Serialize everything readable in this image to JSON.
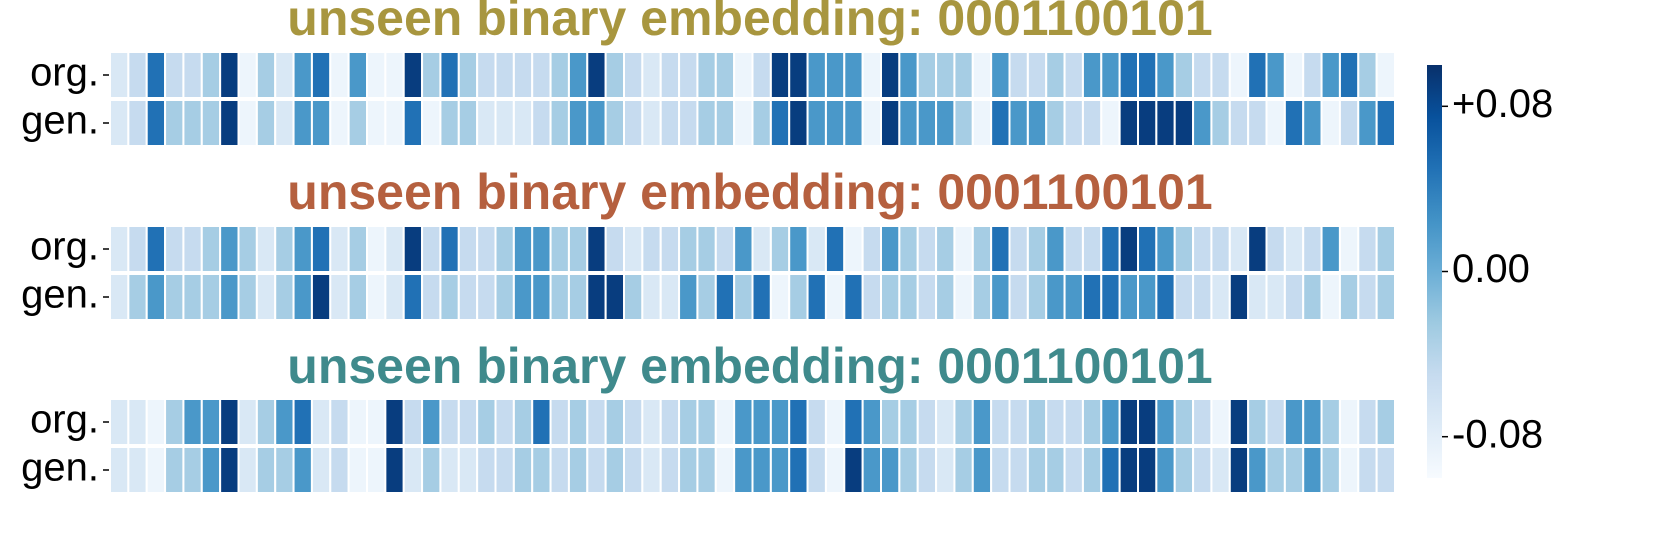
{
  "chart_data": [
    {
      "type": "heatmap",
      "title": "unseen binary embedding: 0001100101",
      "title_color": "#a8963f",
      "rows": [
        "org.",
        "gen."
      ],
      "values": [
        [
          -0.07,
          -0.05,
          0.05,
          -0.05,
          -0.05,
          -0.03,
          0.09,
          -0.09,
          -0.03,
          -0.07,
          0.02,
          0.05,
          -0.09,
          0.02,
          -0.09,
          -0.09,
          0.09,
          -0.03,
          0.05,
          -0.03,
          -0.05,
          -0.05,
          -0.05,
          -0.05,
          -0.03,
          0.02,
          0.09,
          -0.03,
          -0.05,
          -0.07,
          -0.05,
          -0.05,
          -0.03,
          -0.03,
          -0.09,
          -0.05,
          0.09,
          0.09,
          0.02,
          0.02,
          0.02,
          -0.09,
          0.09,
          0.02,
          -0.03,
          -0.03,
          -0.03,
          -0.09,
          0.02,
          -0.05,
          -0.05,
          -0.03,
          -0.05,
          0.02,
          0.02,
          0.05,
          0.05,
          0.02,
          -0.03,
          -0.05,
          -0.05,
          -0.09,
          0.05,
          0.02,
          -0.09,
          -0.05,
          0.02,
          0.05,
          -0.03,
          -0.09
        ],
        [
          -0.07,
          -0.05,
          0.05,
          -0.03,
          -0.03,
          -0.03,
          0.09,
          -0.09,
          -0.03,
          -0.07,
          0.02,
          0.02,
          -0.09,
          -0.03,
          -0.09,
          -0.09,
          0.05,
          -0.09,
          -0.03,
          -0.03,
          -0.07,
          -0.07,
          -0.07,
          -0.05,
          -0.03,
          0.02,
          0.02,
          -0.03,
          -0.05,
          -0.07,
          -0.05,
          -0.05,
          -0.03,
          -0.03,
          -0.09,
          -0.03,
          0.05,
          0.09,
          0.02,
          0.02,
          0.02,
          -0.09,
          0.09,
          0.02,
          0.02,
          0.02,
          -0.03,
          -0.09,
          0.05,
          0.02,
          0.02,
          -0.03,
          -0.05,
          -0.05,
          -0.09,
          0.09,
          0.09,
          0.09,
          0.09,
          0.02,
          -0.03,
          -0.05,
          -0.05,
          -0.09,
          0.05,
          0.02,
          -0.09,
          -0.05,
          0.02,
          0.05
        ]
      ]
    },
    {
      "type": "heatmap",
      "title": "unseen binary embedding: 0001100101",
      "title_color": "#b5603f",
      "rows": [
        "org.",
        "gen."
      ],
      "values": [
        [
          -0.07,
          -0.05,
          0.05,
          -0.05,
          -0.05,
          -0.03,
          0.02,
          -0.03,
          -0.07,
          -0.03,
          0.02,
          0.05,
          -0.07,
          -0.03,
          -0.09,
          -0.07,
          0.09,
          -0.05,
          0.05,
          -0.05,
          -0.05,
          -0.03,
          0.02,
          0.02,
          -0.03,
          -0.03,
          0.09,
          -0.05,
          -0.07,
          -0.05,
          -0.05,
          -0.03,
          -0.03,
          -0.05,
          0.02,
          -0.07,
          -0.03,
          0.02,
          -0.07,
          0.05,
          -0.09,
          -0.05,
          0.02,
          -0.03,
          -0.05,
          -0.03,
          -0.09,
          -0.03,
          0.05,
          -0.05,
          -0.03,
          0.02,
          -0.05,
          -0.05,
          0.05,
          0.09,
          0.05,
          0.02,
          -0.03,
          -0.05,
          -0.05,
          -0.07,
          0.09,
          -0.05,
          -0.07,
          -0.05,
          0.02,
          -0.09,
          -0.05,
          -0.03
        ],
        [
          -0.07,
          -0.03,
          0.02,
          -0.03,
          -0.03,
          -0.03,
          0.02,
          -0.03,
          -0.07,
          -0.03,
          0.02,
          0.09,
          -0.07,
          -0.03,
          -0.09,
          -0.07,
          0.05,
          -0.05,
          -0.03,
          -0.05,
          -0.05,
          -0.03,
          0.02,
          0.02,
          -0.03,
          -0.03,
          0.09,
          0.09,
          -0.03,
          -0.07,
          -0.07,
          0.02,
          -0.03,
          0.05,
          -0.03,
          0.05,
          -0.09,
          -0.03,
          0.05,
          -0.09,
          0.05,
          -0.05,
          -0.03,
          -0.03,
          -0.05,
          -0.03,
          -0.09,
          -0.03,
          0.02,
          -0.05,
          -0.03,
          0.02,
          0.02,
          0.05,
          0.05,
          0.02,
          0.02,
          0.05,
          -0.05,
          -0.05,
          -0.07,
          0.09,
          -0.07,
          -0.07,
          -0.05,
          -0.03,
          -0.09,
          -0.03,
          -0.05,
          -0.03
        ]
      ]
    },
    {
      "type": "heatmap",
      "title": "unseen binary embedding: 0001100101",
      "title_color": "#3f8a8c",
      "rows": [
        "org.",
        "gen."
      ],
      "values": [
        [
          -0.07,
          -0.07,
          -0.09,
          -0.03,
          0.02,
          0.02,
          0.09,
          -0.07,
          -0.03,
          0.02,
          0.05,
          -0.07,
          -0.05,
          -0.09,
          -0.09,
          0.09,
          -0.05,
          0.02,
          -0.05,
          -0.05,
          -0.03,
          -0.05,
          -0.03,
          0.05,
          -0.05,
          -0.03,
          -0.05,
          -0.03,
          -0.05,
          -0.07,
          -0.05,
          -0.03,
          -0.03,
          -0.09,
          0.02,
          0.02,
          0.02,
          0.05,
          -0.05,
          -0.09,
          0.05,
          0.02,
          -0.03,
          -0.03,
          -0.05,
          -0.07,
          -0.03,
          0.02,
          -0.05,
          -0.05,
          -0.03,
          -0.05,
          -0.05,
          -0.03,
          0.02,
          0.09,
          0.09,
          0.02,
          -0.03,
          -0.05,
          -0.09,
          0.09,
          -0.03,
          -0.05,
          0.02,
          0.02,
          -0.03,
          -0.09,
          -0.05,
          -0.03
        ],
        [
          -0.07,
          -0.07,
          -0.09,
          -0.03,
          -0.03,
          0.02,
          0.09,
          -0.07,
          -0.03,
          -0.03,
          0.02,
          -0.07,
          -0.05,
          -0.09,
          -0.09,
          0.09,
          -0.07,
          -0.03,
          -0.07,
          -0.07,
          -0.05,
          -0.05,
          -0.03,
          -0.03,
          -0.05,
          -0.03,
          -0.05,
          -0.03,
          -0.05,
          -0.07,
          -0.05,
          -0.03,
          -0.03,
          -0.09,
          0.02,
          0.02,
          0.02,
          0.05,
          -0.05,
          -0.09,
          0.09,
          0.02,
          0.02,
          -0.03,
          -0.05,
          -0.07,
          -0.03,
          0.02,
          -0.05,
          -0.05,
          -0.03,
          -0.03,
          -0.05,
          -0.03,
          0.05,
          0.09,
          0.09,
          0.02,
          -0.03,
          -0.05,
          -0.07,
          0.09,
          0.02,
          -0.03,
          -0.03,
          0.02,
          -0.03,
          -0.09,
          -0.05,
          -0.05
        ]
      ]
    }
  ],
  "colorbar": {
    "vlim": [
      -0.1,
      0.1
    ],
    "ticks": [
      {
        "value": 0.08,
        "label": "+0.08"
      },
      {
        "value": 0,
        "label": "0.00"
      },
      {
        "value": -0.08,
        "label": "-0.08"
      }
    ]
  }
}
